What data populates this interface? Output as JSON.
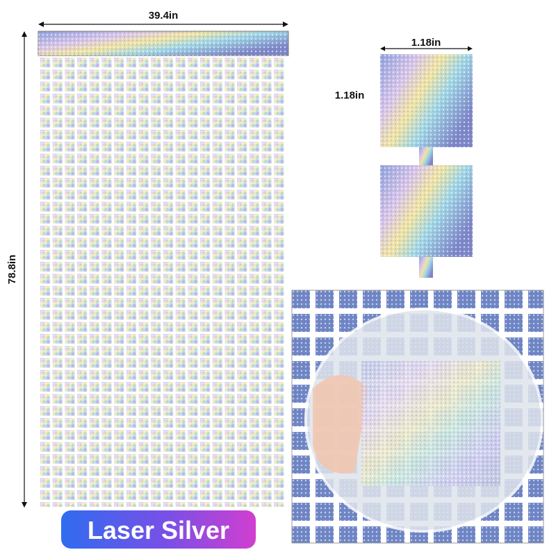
{
  "dimensions": {
    "curtain_width": "39.4in",
    "curtain_height": "78.8in",
    "square_width": "1.18in",
    "square_height": "1.18in"
  },
  "label": "Laser Silver"
}
